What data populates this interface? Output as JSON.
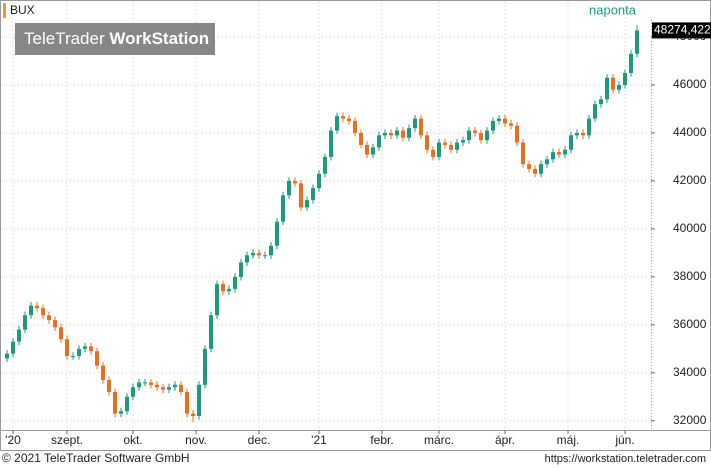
{
  "chart_data": {
    "type": "candlestick",
    "symbol": "BUX",
    "interval": "naponta",
    "watermark_brand": "TeleTrader",
    "watermark_product": "WorkStation",
    "copyright": "© 2021 TeleTrader Software GmbH",
    "url": "https://workstation.teletrader.com",
    "up_color": "#1b9a7e",
    "down_color": "#ec6d1c",
    "grid": true,
    "xlim": [
      0,
      216
    ],
    "xticks": [
      {
        "value": 3,
        "label": "'20"
      },
      {
        "value": 21,
        "label": "szept."
      },
      {
        "value": 43,
        "label": "okt."
      },
      {
        "value": 64,
        "label": "nov."
      },
      {
        "value": 85,
        "label": "dec."
      },
      {
        "value": 105,
        "label": "'21"
      },
      {
        "value": 126,
        "label": "febr."
      },
      {
        "value": 145,
        "label": "márc."
      },
      {
        "value": 167,
        "label": "ápr."
      },
      {
        "value": 188,
        "label": "máj."
      },
      {
        "value": 207,
        "label": "jún."
      }
    ],
    "ylim": [
      31700,
      48625
    ],
    "yticks": [
      32000,
      34000,
      36000,
      38000,
      40000,
      42000,
      44000,
      46000,
      48000
    ],
    "last_price": {
      "value": 48274.422,
      "label": "48274,422"
    },
    "x": [
      1,
      3,
      5,
      7,
      9,
      11,
      13,
      15,
      17,
      19,
      21,
      23,
      25,
      27,
      29,
      31,
      33,
      35,
      37,
      39,
      41,
      43,
      45,
      47,
      49,
      51,
      53,
      55,
      57,
      59,
      61,
      63,
      65,
      67,
      69,
      71,
      73,
      75,
      77,
      79,
      81,
      83,
      85,
      87,
      89,
      91,
      93,
      95,
      97,
      99,
      101,
      103,
      105,
      107,
      109,
      111,
      113,
      115,
      117,
      119,
      121,
      123,
      125,
      127,
      129,
      131,
      133,
      135,
      137,
      139,
      141,
      143,
      145,
      147,
      149,
      151,
      153,
      155,
      157,
      159,
      161,
      163,
      165,
      167,
      169,
      171,
      173,
      175,
      177,
      179,
      181,
      183,
      185,
      187,
      189,
      191,
      193,
      195,
      197,
      199,
      201,
      203,
      205,
      207,
      209,
      211
    ],
    "open": [
      34600,
      34800,
      35300,
      35800,
      36400,
      36800,
      36700,
      36400,
      36200,
      35900,
      35400,
      34700,
      34700,
      35000,
      35100,
      34900,
      34300,
      33700,
      33200,
      32300,
      32400,
      33000,
      33400,
      33600,
      33600,
      33500,
      33400,
      33300,
      33400,
      33500,
      33200,
      32300,
      32200,
      33500,
      35000,
      36400,
      37700,
      37400,
      37500,
      38000,
      38600,
      38900,
      39000,
      38900,
      38900,
      39300,
      40300,
      41400,
      42000,
      41900,
      40900,
      41200,
      41700,
      42300,
      43000,
      44100,
      44700,
      44600,
      44500,
      44000,
      43500,
      43100,
      43400,
      43900,
      44000,
      43900,
      44100,
      43800,
      44200,
      44600,
      43900,
      43300,
      43000,
      43600,
      43500,
      43300,
      43600,
      43700,
      44100,
      44000,
      43700,
      44100,
      44500,
      44600,
      44400,
      44300,
      43600,
      42700,
      42500,
      42300,
      42700,
      42900,
      43200,
      43100,
      43300,
      43900,
      44000,
      43900,
      44600,
      45200,
      45400,
      46300,
      45800,
      46000,
      46500,
      47300
    ],
    "high": [
      34950,
      35450,
      35950,
      36550,
      36950,
      36950,
      36850,
      36550,
      36350,
      36050,
      35550,
      34850,
      35150,
      35250,
      35250,
      35050,
      34450,
      33850,
      33350,
      32550,
      33150,
      33550,
      33750,
      33750,
      33750,
      33650,
      33550,
      33550,
      33650,
      33650,
      33350,
      32450,
      33650,
      35150,
      36550,
      37850,
      37850,
      37650,
      38150,
      38750,
      39050,
      39150,
      39150,
      39050,
      39450,
      40450,
      41550,
      42150,
      42150,
      42050,
      41350,
      41850,
      42450,
      43150,
      44250,
      44850,
      44850,
      44750,
      44650,
      44150,
      43650,
      43550,
      44050,
      44150,
      44150,
      44250,
      44250,
      44350,
      44750,
      44750,
      44050,
      43450,
      43750,
      43750,
      43650,
      43750,
      43850,
      44250,
      44250,
      44150,
      44250,
      44650,
      44750,
      44750,
      44550,
      44450,
      43750,
      42850,
      42650,
      42850,
      43050,
      43350,
      43350,
      43450,
      44050,
      44150,
      44150,
      44750,
      45350,
      45550,
      46450,
      46450,
      46150,
      46650,
      47450,
      48500
    ],
    "low": [
      34450,
      34650,
      35150,
      35650,
      36250,
      36550,
      36250,
      36050,
      35750,
      35250,
      34550,
      34550,
      34550,
      34850,
      34750,
      34150,
      33550,
      33050,
      32150,
      32150,
      32250,
      32850,
      33250,
      33450,
      33350,
      33250,
      33150,
      33150,
      33250,
      33050,
      32150,
      31950,
      32050,
      33350,
      34850,
      36250,
      37250,
      37250,
      37350,
      37850,
      38450,
      38750,
      38750,
      38750,
      38750,
      39150,
      40150,
      41250,
      41750,
      40750,
      40750,
      41050,
      41550,
      42150,
      42850,
      43950,
      44450,
      44350,
      43850,
      43350,
      42950,
      42950,
      43250,
      43750,
      43750,
      43750,
      43650,
      43650,
      44050,
      43750,
      43150,
      42850,
      42850,
      43350,
      43150,
      43150,
      43450,
      43550,
      43850,
      43550,
      43550,
      43950,
      44350,
      44250,
      44150,
      43450,
      42550,
      42350,
      42150,
      42150,
      42550,
      42750,
      42950,
      42950,
      43150,
      43750,
      43750,
      43750,
      44450,
      45050,
      45250,
      45650,
      45650,
      45850,
      46350,
      47150
    ],
    "close": [
      34800,
      35300,
      35800,
      36400,
      36800,
      36700,
      36400,
      36200,
      35900,
      35400,
      34700,
      34700,
      35000,
      35100,
      34900,
      34300,
      33700,
      33200,
      32300,
      32400,
      33000,
      33400,
      33600,
      33600,
      33500,
      33400,
      33300,
      33400,
      33500,
      33200,
      32300,
      32200,
      33500,
      35000,
      36400,
      37700,
      37400,
      37500,
      38000,
      38600,
      38900,
      39000,
      38900,
      38900,
      39300,
      40300,
      41400,
      42000,
      41900,
      40900,
      41200,
      41700,
      42300,
      43000,
      44100,
      44700,
      44600,
      44500,
      44000,
      43500,
      43100,
      43400,
      43900,
      44000,
      43900,
      44100,
      43800,
      44200,
      44600,
      43900,
      43300,
      43000,
      43600,
      43500,
      43300,
      43600,
      43700,
      44100,
      44000,
      43700,
      44100,
      44500,
      44600,
      44400,
      44300,
      43600,
      42700,
      42500,
      42300,
      42700,
      42900,
      43200,
      43100,
      43300,
      43900,
      44000,
      43900,
      44600,
      45200,
      45400,
      46300,
      45800,
      46000,
      46500,
      47300,
      48274.422
    ]
  }
}
